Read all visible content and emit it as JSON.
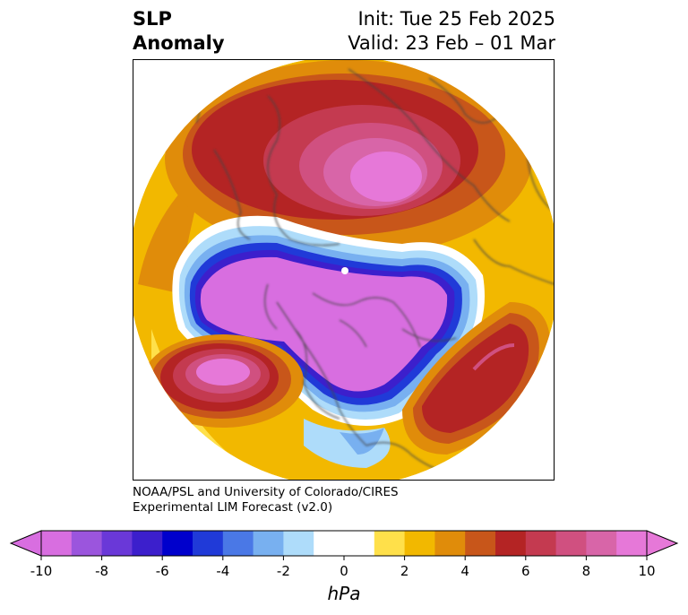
{
  "title": {
    "left_line1": "SLP",
    "left_line2": "Anomaly",
    "right_line1": "Init: Tue 25 Feb 2025",
    "right_line2": "Valid: 23 Feb – 01 Mar"
  },
  "credit": {
    "line1": "NOAA/PSL and University of Colorado/CIRES",
    "line2": "Experimental LIM Forecast (v2.0)"
  },
  "colorbar": {
    "unit": "hPa",
    "ticks": [
      "-10",
      "-8",
      "-6",
      "-4",
      "-2",
      "0",
      "2",
      "4",
      "6",
      "8",
      "10"
    ],
    "colors": [
      "#d86ee0",
      "#9b55dd",
      "#6a38d8",
      "#3c1fcc",
      "#0000cc",
      "#203ad8",
      "#4a78e6",
      "#78b0f0",
      "#aedcfa",
      "#ffffff",
      "#ffffff",
      "#ffe04a",
      "#f2b800",
      "#e08c0a",
      "#c8561a",
      "#b42424",
      "#c43a50",
      "#d05080",
      "#d865a8",
      "#e678d8"
    ]
  },
  "map": {
    "projection": "north-polar-stereographic",
    "features": [
      "negative-anomaly-arctic",
      "positive-anomaly-europe-russia",
      "positive-anomaly-north-atlantic",
      "positive-anomaly-north-pacific"
    ]
  }
}
